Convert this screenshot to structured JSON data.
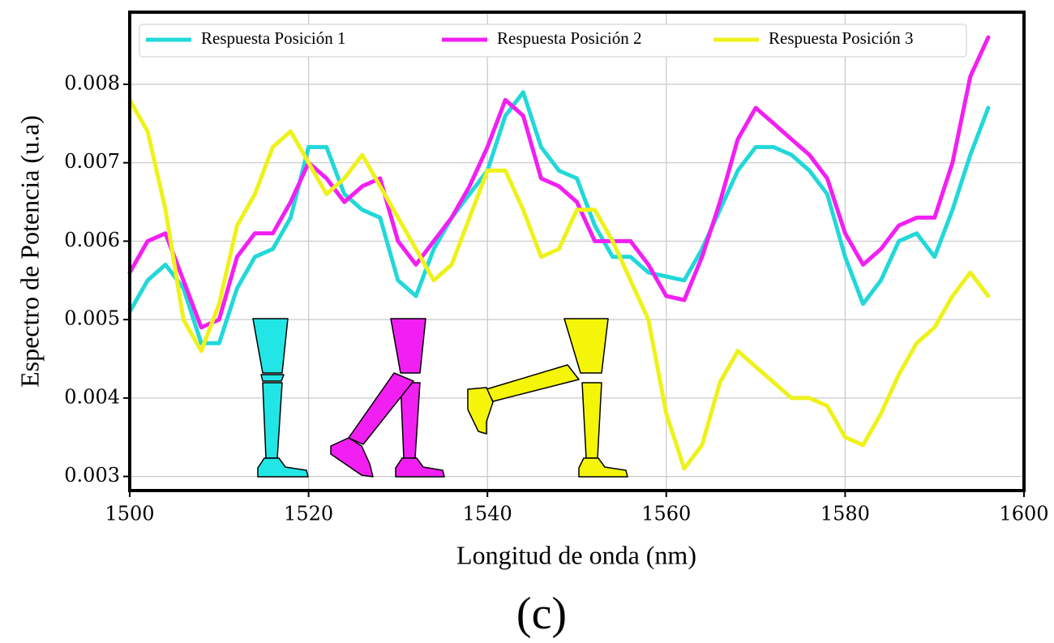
{
  "chart_data": {
    "type": "line",
    "xlabel": "Longitud de onda (nm)",
    "ylabel": "Espectro de Potencia (u.a)",
    "x": [
      1500,
      1502,
      1504,
      1506,
      1508,
      1510,
      1512,
      1514,
      1516,
      1518,
      1520,
      1522,
      1524,
      1526,
      1528,
      1530,
      1532,
      1534,
      1536,
      1538,
      1540,
      1542,
      1544,
      1546,
      1548,
      1550,
      1552,
      1554,
      1556,
      1558,
      1560,
      1562,
      1564,
      1566,
      1568,
      1570,
      1572,
      1574,
      1576,
      1578,
      1580,
      1582,
      1584,
      1586,
      1588,
      1590,
      1592,
      1594,
      1596
    ],
    "series": [
      {
        "name": "Respuesta Posición 1",
        "color": "#22d8d8",
        "values": [
          0.0051,
          0.0055,
          0.0057,
          0.0054,
          0.0047,
          0.0047,
          0.0054,
          0.0058,
          0.0059,
          0.0063,
          0.0072,
          0.0072,
          0.0066,
          0.0064,
          0.0063,
          0.0055,
          0.0053,
          0.0059,
          0.0063,
          0.0066,
          0.0069,
          0.0076,
          0.0079,
          0.0072,
          0.0069,
          0.0068,
          0.0062,
          0.0058,
          0.0058,
          0.0056,
          0.00555,
          0.0055,
          0.0059,
          0.0064,
          0.0069,
          0.0072,
          0.0072,
          0.0071,
          0.0069,
          0.0066,
          0.0058,
          0.0052,
          0.0055,
          0.006,
          0.0061,
          0.0058,
          0.0064,
          0.0071,
          0.0077
        ]
      },
      {
        "name": "Respuesta Posición 2",
        "color": "#f21ff2",
        "values": [
          0.0056,
          0.006,
          0.0061,
          0.0055,
          0.0049,
          0.005,
          0.0058,
          0.0061,
          0.0061,
          0.0065,
          0.007,
          0.0068,
          0.0065,
          0.0067,
          0.0068,
          0.006,
          0.0057,
          0.006,
          0.0063,
          0.0067,
          0.0072,
          0.0078,
          0.0076,
          0.0068,
          0.0067,
          0.0065,
          0.006,
          0.006,
          0.006,
          0.0057,
          0.0053,
          0.00525,
          0.0058,
          0.0065,
          0.0073,
          0.0077,
          0.0075,
          0.0073,
          0.0071,
          0.0068,
          0.0061,
          0.0057,
          0.0059,
          0.0062,
          0.0063,
          0.0063,
          0.007,
          0.0081,
          0.0086
        ]
      },
      {
        "name": "Respuesta Posición 3",
        "color": "#eef21a",
        "values": [
          0.0078,
          0.0074,
          0.0064,
          0.005,
          0.0046,
          0.0052,
          0.0062,
          0.0066,
          0.0072,
          0.0074,
          0.007,
          0.0066,
          0.0068,
          0.0071,
          0.0067,
          0.0063,
          0.0059,
          0.0055,
          0.0057,
          0.0063,
          0.0069,
          0.0069,
          0.0064,
          0.0058,
          0.0059,
          0.0064,
          0.0064,
          0.006,
          0.0055,
          0.005,
          0.0038,
          0.0031,
          0.0034,
          0.0042,
          0.0046,
          0.0044,
          0.0042,
          0.004,
          0.004,
          0.0039,
          0.0035,
          0.0034,
          0.0038,
          0.0043,
          0.0047,
          0.0049,
          0.0053,
          0.0056,
          0.0053
        ]
      }
    ],
    "xlim": [
      1500,
      1600
    ],
    "xticks": [
      1500,
      1520,
      1540,
      1560,
      1580,
      1600
    ],
    "ylim": [
      0.00282,
      0.00892
    ],
    "yticks": [
      0.003,
      0.004,
      0.005,
      0.006,
      0.007,
      0.008
    ],
    "grid": true,
    "legend": "top"
  },
  "caption": "(c)"
}
